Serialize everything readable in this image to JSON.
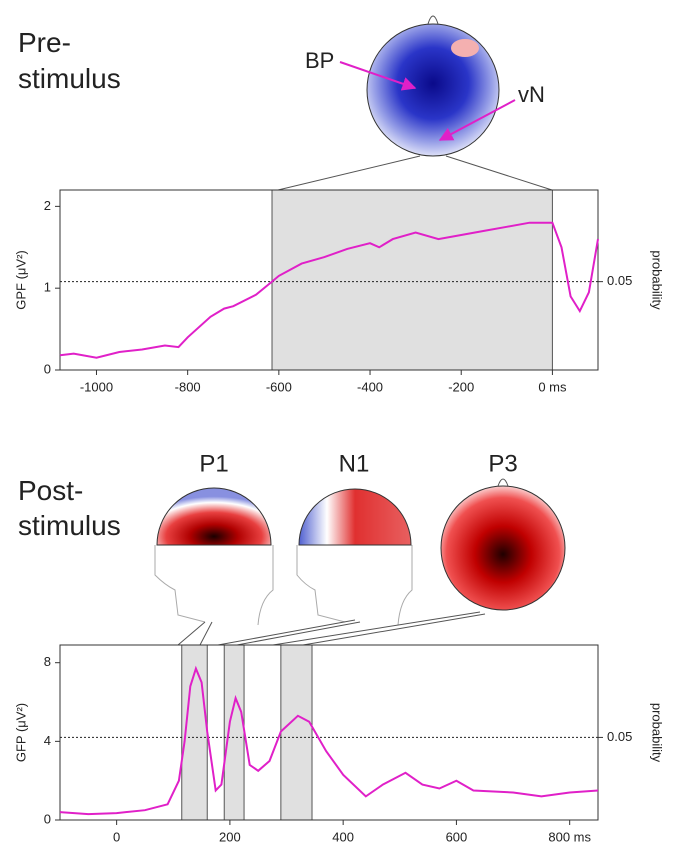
{
  "chart_data": [
    {
      "type": "line",
      "title": [
        "Pre-",
        "stimulus"
      ],
      "annotations": [
        "BP",
        "vN"
      ],
      "y_label": "GPF (μV²)",
      "y2_label": "probability",
      "x": [
        -1080,
        -1050,
        -1000,
        -950,
        -900,
        -850,
        -820,
        -800,
        -750,
        -720,
        -700,
        -650,
        -615,
        -600,
        -550,
        -500,
        -450,
        -400,
        -380,
        -350,
        -300,
        -250,
        -200,
        -150,
        -100,
        -50,
        0,
        20,
        40,
        60,
        80,
        100
      ],
      "values": [
        0.18,
        0.2,
        0.15,
        0.22,
        0.25,
        0.3,
        0.28,
        0.4,
        0.65,
        0.75,
        0.78,
        0.92,
        1.08,
        1.15,
        1.3,
        1.38,
        1.48,
        1.55,
        1.5,
        1.6,
        1.68,
        1.6,
        1.65,
        1.7,
        1.75,
        1.8,
        1.8,
        1.5,
        0.9,
        0.72,
        0.95,
        1.6
      ],
      "color": "#e020c8",
      "xlim": [
        -1080,
        100
      ],
      "ylim": [
        0,
        2.2
      ],
      "xticks": [
        -1000,
        -800,
        -600,
        -400,
        -200,
        {
          "value": 0,
          "label": "0 ms"
        }
      ],
      "yticks": [
        0,
        1,
        2
      ],
      "windows": [
        [
          -615,
          0
        ]
      ],
      "threshold": {
        "value": 1.08,
        "label": "0.05"
      }
    },
    {
      "type": "line",
      "title": [
        "Post-",
        "stimulus"
      ],
      "annotations": [
        "P1",
        "N1",
        "P3"
      ],
      "y_label": "GFP (μV²)",
      "y2_label": "probability",
      "x": [
        -100,
        -50,
        0,
        50,
        90,
        110,
        120,
        130,
        140,
        150,
        160,
        175,
        185,
        200,
        210,
        220,
        235,
        250,
        270,
        290,
        320,
        340,
        370,
        400,
        440,
        470,
        510,
        540,
        570,
        600,
        630,
        700,
        750,
        800,
        850
      ],
      "values": [
        0.4,
        0.3,
        0.35,
        0.5,
        0.8,
        2,
        4,
        6.8,
        7.7,
        7,
        4.5,
        1.5,
        1.8,
        5,
        6.2,
        5.5,
        2.8,
        2.5,
        3,
        4.5,
        5.3,
        5,
        3.5,
        2.3,
        1.2,
        1.8,
        2.4,
        1.8,
        1.6,
        2,
        1.5,
        1.4,
        1.2,
        1.4,
        1.5
      ],
      "color": "#e020c8",
      "xlim": [
        -100,
        850
      ],
      "ylim": [
        0,
        8.9
      ],
      "xticks": [
        0,
        200,
        400,
        600,
        {
          "value": 800,
          "label": "800 ms"
        }
      ],
      "yticks": [
        0,
        4,
        8
      ],
      "windows": [
        [
          115,
          160
        ],
        [
          190,
          225
        ],
        [
          290,
          345
        ]
      ],
      "threshold": {
        "value": 4.2,
        "label": "0.05"
      }
    }
  ]
}
